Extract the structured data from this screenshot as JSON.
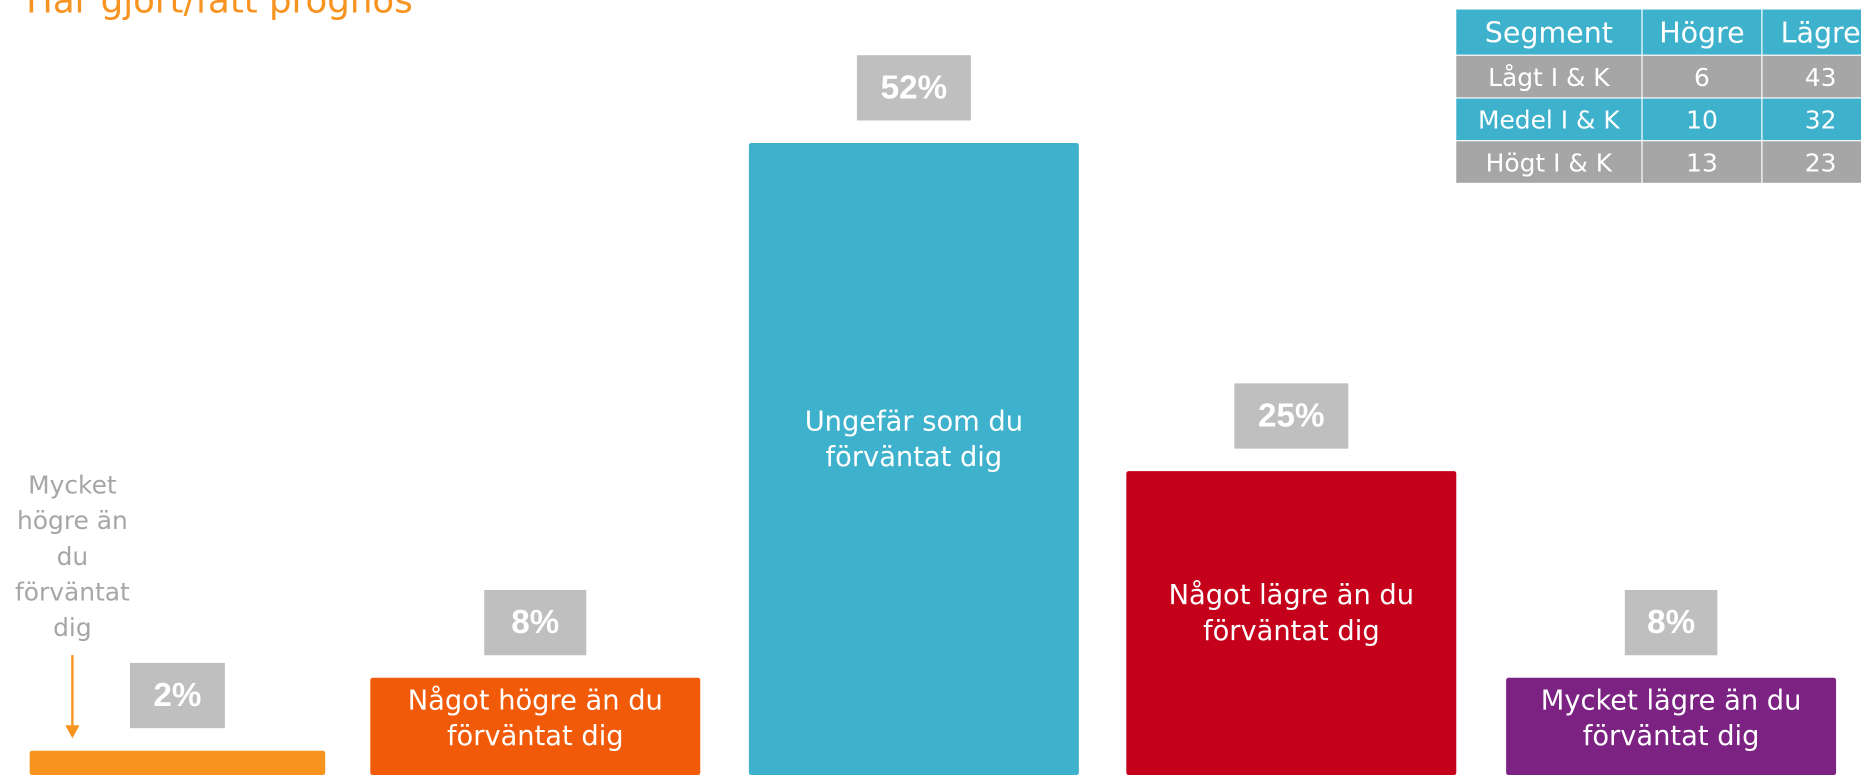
{
  "chart_data": {
    "type": "bar",
    "title": "Har gjort/fått prognos",
    "categories": [
      "Mycket högre än du förväntat dig",
      "Något högre än du förväntat dig",
      "Ungefär som du förväntat dig",
      "Något lägre än du förväntat dig",
      "Mycket lägre än du förväntat dig"
    ],
    "values": [
      2,
      8,
      52,
      25,
      8
    ],
    "value_labels": [
      "2%",
      "8%",
      "52%",
      "25%",
      "8%"
    ],
    "colors": [
      "#f7941d",
      "#f15a09",
      "#3eb1cc",
      "#c4001a",
      "#7b2282"
    ],
    "ylim": [
      0,
      54
    ]
  },
  "table": {
    "header": [
      "Segment",
      "Högre",
      "Lägre"
    ],
    "rows": [
      [
        "Lågt I & K",
        "6",
        "43"
      ],
      [
        "Medel I & K",
        "10",
        "32"
      ],
      [
        "Högt I & K",
        "13",
        "23"
      ]
    ]
  }
}
